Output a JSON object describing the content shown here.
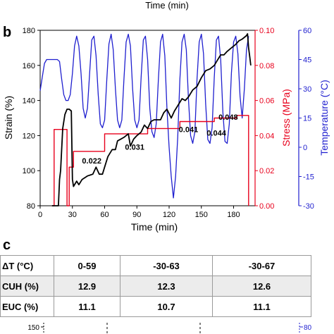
{
  "top_residual": {
    "xlabel": "Time (min)"
  },
  "panel_b": {
    "label": "b"
  },
  "panel_c": {
    "label": "c"
  },
  "table": {
    "columns": [
      "ΔT (°C)",
      "0-59",
      "-30-63",
      "-30-67"
    ],
    "rows": [
      {
        "label": "CUH (%)",
        "values": [
          "12.9",
          "12.3",
          "12.6"
        ],
        "shaded": true
      },
      {
        "label": "EUC (%)",
        "values": [
          "11.1",
          "10.7",
          "11.1"
        ],
        "shaded": false
      }
    ]
  },
  "bottom_residual": {
    "left_tick": "150",
    "right_tick": "80"
  },
  "colors": {
    "strain": "#000000",
    "stress": "#e8001c",
    "temperature": "#1f1fcf",
    "axis": "#000000",
    "table_border": "#9a9a9a",
    "table_shade": "#ececec"
  },
  "chart_data": {
    "type": "line",
    "title": "",
    "xlabel": "Time (min)",
    "xlim": [
      0,
      200
    ],
    "xticks": [
      0,
      30,
      60,
      90,
      120,
      150,
      180
    ],
    "grid": false,
    "axes": {
      "strain": {
        "label": "Strain (%)",
        "lim": [
          80,
          180
        ],
        "ticks": [
          80,
          100,
          120,
          140,
          160,
          180
        ],
        "side": "left"
      },
      "stress": {
        "label": "Stress (MPa)",
        "lim": [
          0,
          0.1
        ],
        "ticks": [
          "0.00",
          "0.02",
          "0.04",
          "0.06",
          "0.08",
          "0.10"
        ],
        "side": "right"
      },
      "temperature": {
        "label": "Temperature (°C)",
        "lim": [
          -30,
          60
        ],
        "ticks": [
          -30,
          -15,
          0,
          15,
          30,
          45,
          60
        ],
        "side": "right-outer"
      }
    },
    "annotations": [
      {
        "text": "0.022",
        "x": 48,
        "y": 104
      },
      {
        "text": "0.031",
        "x": 88,
        "y": 112
      },
      {
        "text": "0.041",
        "x": 138,
        "y": 122
      },
      {
        "text": "0.044",
        "x": 164,
        "y": 120
      },
      {
        "text": "0.048",
        "x": 175,
        "y": 129
      }
    ],
    "series": [
      {
        "axis": "strain",
        "x": [
          11,
          14,
          17,
          18,
          19,
          21,
          23,
          25,
          27,
          29,
          30,
          31,
          32,
          34,
          36,
          39,
          44,
          49,
          52,
          55,
          58,
          61,
          63,
          65,
          67,
          70,
          72,
          75,
          78,
          80,
          82,
          84,
          87,
          90,
          94,
          97,
          100,
          103,
          106,
          109,
          112,
          115,
          118,
          122,
          125,
          128,
          132,
          135,
          138,
          142,
          146,
          150,
          154,
          158,
          162,
          165,
          168,
          171,
          174,
          178,
          182,
          185,
          188,
          190,
          192,
          193,
          194,
          195,
          196
        ],
        "y": [
          80,
          80,
          80,
          95,
          100,
          124,
          132,
          135,
          135,
          134,
          95,
          91,
          92,
          94,
          92,
          95,
          97,
          98,
          102,
          98,
          98,
          104,
          108,
          110,
          112,
          112,
          117,
          118,
          119,
          120,
          121,
          114,
          118,
          120,
          122,
          126,
          124,
          128,
          129,
          129,
          129,
          133,
          135,
          130,
          134,
          137,
          141,
          140,
          142,
          146,
          148,
          153,
          157,
          158,
          160,
          163,
          166,
          166,
          168,
          170,
          172,
          174,
          175,
          176,
          177,
          178,
          170,
          165,
          160
        ]
      },
      {
        "axis": "stress",
        "x": [
          11,
          13,
          13,
          25,
          25,
          27,
          27,
          31,
          31,
          60,
          60,
          100,
          100,
          130,
          130,
          162,
          162,
          183,
          183,
          194,
          194
        ],
        "y": [
          0.0,
          0.0,
          0.0435,
          0.0435,
          0.0,
          0.0,
          0.022,
          0.022,
          0.031,
          0.031,
          0.041,
          0.041,
          0.044,
          0.044,
          0.048,
          0.048,
          0.05,
          0.05,
          0.0515,
          0.0515,
          0.0
        ]
      },
      {
        "axis": "temperature",
        "x": [
          0,
          2,
          4,
          6,
          8,
          10,
          12,
          14,
          16,
          18,
          20,
          22,
          24,
          26,
          28,
          30,
          32,
          34,
          36,
          38,
          40,
          42,
          44,
          46,
          48,
          50,
          52,
          54,
          56,
          58,
          60,
          62,
          64,
          66,
          68,
          70,
          72,
          74,
          76,
          78,
          80,
          82,
          84,
          86,
          88,
          90,
          92,
          94,
          96,
          98,
          100,
          102,
          104,
          106,
          108,
          110,
          112,
          114,
          116,
          118,
          120,
          122,
          124,
          126,
          128,
          130,
          132,
          134,
          136,
          138,
          140,
          142,
          144,
          146,
          148,
          150,
          152,
          154,
          156,
          158,
          160,
          162,
          164,
          166,
          168,
          170,
          172,
          174,
          176,
          178,
          180,
          182,
          184,
          186,
          188,
          190,
          192,
          194
        ],
        "y": [
          29,
          36,
          43,
          45,
          45,
          45,
          45,
          45,
          45,
          44,
          35,
          27,
          24,
          24,
          27,
          38,
          52,
          57,
          52,
          38,
          20,
          15,
          20,
          38,
          55,
          57,
          47,
          27,
          12,
          10,
          14,
          35,
          53,
          58,
          50,
          30,
          14,
          10,
          14,
          35,
          54,
          58,
          52,
          30,
          14,
          10,
          14,
          36,
          55,
          57,
          45,
          20,
          8,
          5,
          12,
          35,
          54,
          58,
          47,
          20,
          0,
          -15,
          -26,
          -15,
          5,
          35,
          54,
          58,
          50,
          25,
          6,
          2,
          8,
          35,
          54,
          58,
          48,
          22,
          4,
          2,
          10,
          36,
          55,
          57,
          45,
          18,
          3,
          2,
          12,
          38,
          54,
          57,
          48,
          26,
          15,
          30,
          50,
          57
        ]
      }
    ]
  }
}
